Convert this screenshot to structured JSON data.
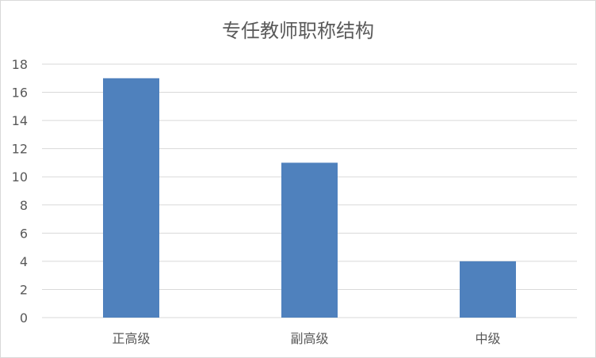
{
  "chart_data": {
    "type": "bar",
    "title": "专任教师职称结构",
    "categories": [
      "正高级",
      "副高级",
      "中级"
    ],
    "values": [
      17,
      11,
      4
    ],
    "ylim": [
      0,
      18
    ],
    "yticks": [
      0,
      2,
      4,
      6,
      8,
      10,
      12,
      14,
      16,
      18
    ],
    "grid": true,
    "bar_color": "#4f81bd"
  }
}
